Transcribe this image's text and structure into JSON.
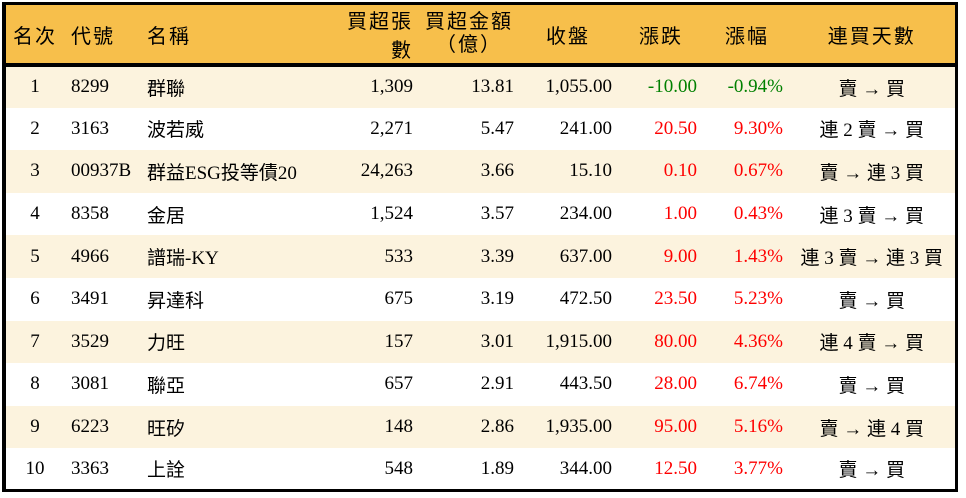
{
  "colors": {
    "header_bg": "#F7BF4B",
    "row_alt_bg": "#FCF3DE",
    "row_bg": "#FFFFFF",
    "up_red": "#FE0000",
    "down_green": "#008000",
    "border": "#000000",
    "text": "#000000"
  },
  "chart_data": {
    "type": "table",
    "header": {
      "rank": "名次",
      "code": "代號",
      "name": "名稱",
      "volume": "買超張數",
      "amount": "買超金額\n（億）",
      "close": "收盤",
      "change": "漲跌",
      "pct": "漲幅",
      "streak": "連買天數"
    },
    "rows": [
      {
        "rank": "1",
        "code": "8299",
        "name": "群聯",
        "volume": "1,309",
        "amount": "13.81",
        "close": "1,055.00",
        "change": "-10.00",
        "pct": "-0.94%",
        "streak": "賣 → 買",
        "direction": "down"
      },
      {
        "rank": "2",
        "code": "3163",
        "name": "波若威",
        "volume": "2,271",
        "amount": "5.47",
        "close": "241.00",
        "change": "20.50",
        "pct": "9.30%",
        "streak": "連 2 賣 → 買",
        "direction": "up"
      },
      {
        "rank": "3",
        "code": "00937B",
        "name": "群益ESG投等債20",
        "volume": "24,263",
        "amount": "3.66",
        "close": "15.10",
        "change": "0.10",
        "pct": "0.67%",
        "streak": "賣 → 連 3 買",
        "direction": "up"
      },
      {
        "rank": "4",
        "code": "8358",
        "name": "金居",
        "volume": "1,524",
        "amount": "3.57",
        "close": "234.00",
        "change": "1.00",
        "pct": "0.43%",
        "streak": "連 3 賣 → 買",
        "direction": "up"
      },
      {
        "rank": "5",
        "code": "4966",
        "name": "譜瑞-KY",
        "volume": "533",
        "amount": "3.39",
        "close": "637.00",
        "change": "9.00",
        "pct": "1.43%",
        "streak": "連 3 賣 → 連 3 買",
        "direction": "up"
      },
      {
        "rank": "6",
        "code": "3491",
        "name": "昇達科",
        "volume": "675",
        "amount": "3.19",
        "close": "472.50",
        "change": "23.50",
        "pct": "5.23%",
        "streak": "賣 → 買",
        "direction": "up"
      },
      {
        "rank": "7",
        "code": "3529",
        "name": "力旺",
        "volume": "157",
        "amount": "3.01",
        "close": "1,915.00",
        "change": "80.00",
        "pct": "4.36%",
        "streak": "連 4 賣 → 買",
        "direction": "up"
      },
      {
        "rank": "8",
        "code": "3081",
        "name": "聯亞",
        "volume": "657",
        "amount": "2.91",
        "close": "443.50",
        "change": "28.00",
        "pct": "6.74%",
        "streak": "賣 → 買",
        "direction": "up"
      },
      {
        "rank": "9",
        "code": "6223",
        "name": "旺矽",
        "volume": "148",
        "amount": "2.86",
        "close": "1,935.00",
        "change": "95.00",
        "pct": "5.16%",
        "streak": "賣 → 連 4 買",
        "direction": "up"
      },
      {
        "rank": "10",
        "code": "3363",
        "name": "上詮",
        "volume": "548",
        "amount": "1.89",
        "close": "344.00",
        "change": "12.50",
        "pct": "3.77%",
        "streak": "賣 → 買",
        "direction": "up"
      }
    ]
  }
}
